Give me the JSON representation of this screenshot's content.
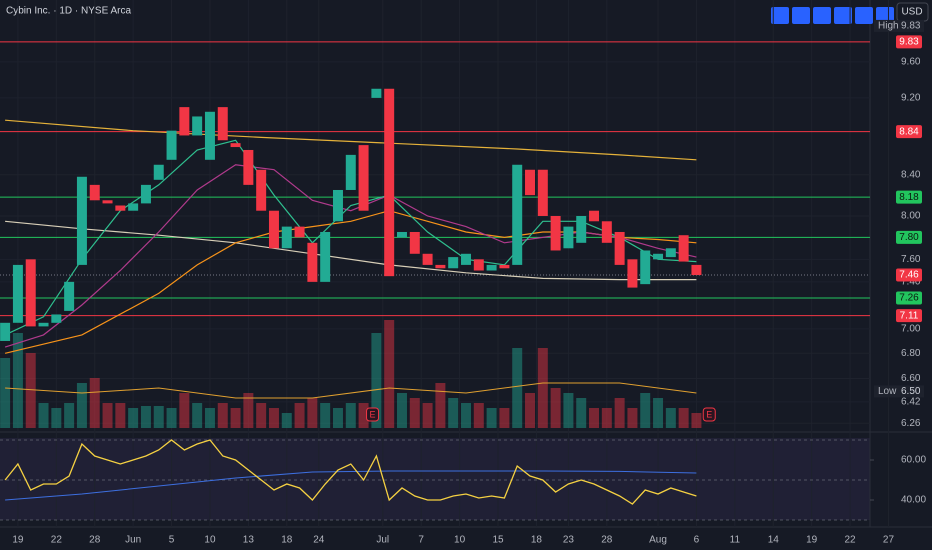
{
  "chart_data": {
    "type": "candlestick",
    "title": "Cybin Inc. · 1D · NYSE Arca",
    "currency": "USD",
    "log": true,
    "grid": true,
    "up_color": "#22ab94",
    "down_color": "#f23645",
    "x": [
      0,
      1,
      2,
      3,
      4,
      5,
      6,
      7,
      8,
      9,
      10,
      11,
      12,
      13,
      14,
      15,
      16,
      17,
      18,
      19,
      20,
      21,
      22,
      23,
      24,
      25,
      26,
      27,
      28,
      29,
      30,
      31,
      32,
      33,
      34,
      35,
      36,
      37,
      38,
      39,
      40,
      41,
      42,
      43,
      44,
      45,
      46,
      47,
      48,
      49,
      50,
      51,
      52,
      53,
      54
    ],
    "open": [
      6.9,
      7.05,
      7.6,
      7.02,
      7.05,
      7.15,
      7.55,
      8.3,
      8.15,
      8.1,
      8.05,
      8.12,
      8.35,
      8.55,
      9.1,
      8.8,
      8.55,
      9.1,
      8.72,
      8.65,
      8.45,
      8.05,
      7.7,
      7.9,
      7.75,
      7.4,
      7.95,
      8.25,
      8.7,
      9.2,
      9.3,
      7.8,
      7.85,
      7.65,
      7.55,
      7.52,
      7.55,
      7.6,
      7.5,
      7.55,
      7.55,
      8.45,
      8.45,
      8.0,
      7.7,
      7.75,
      8.05,
      7.95,
      7.85,
      7.6,
      7.38,
      7.6,
      7.62,
      7.82,
      7.55
    ],
    "high": {
      "name": "High",
      "value": 9.83,
      "label": "9.83"
    },
    "low": {
      "name": "Low",
      "value": 6.5,
      "label": "6.50"
    },
    "close": [
      7.05,
      7.55,
      7.02,
      7.05,
      7.12,
      7.4,
      8.38,
      8.15,
      8.12,
      8.05,
      8.12,
      8.3,
      8.5,
      8.85,
      8.8,
      9.0,
      9.05,
      8.75,
      8.68,
      8.3,
      8.05,
      7.7,
      7.9,
      7.8,
      7.4,
      7.85,
      8.25,
      8.6,
      8.05,
      9.3,
      7.45,
      7.85,
      7.65,
      7.55,
      7.52,
      7.62,
      7.65,
      7.5,
      7.55,
      7.52,
      8.5,
      8.2,
      8.0,
      7.68,
      7.9,
      8.0,
      7.95,
      7.75,
      7.55,
      7.35,
      7.68,
      7.65,
      7.7,
      7.58,
      7.46
    ],
    "volume": [
      70,
      95,
      75,
      25,
      20,
      25,
      45,
      50,
      25,
      25,
      20,
      22,
      22,
      20,
      35,
      25,
      20,
      25,
      20,
      35,
      25,
      20,
      15,
      25,
      30,
      25,
      20,
      25,
      25,
      95,
      108,
      35,
      30,
      25,
      45,
      30,
      25,
      25,
      20,
      20,
      80,
      35,
      80,
      40,
      35,
      30,
      20,
      20,
      30,
      20,
      35,
      30,
      20,
      20,
      15
    ],
    "volume_lim": [
      0,
      330
    ],
    "volume_ma": {
      "color": "#e0a030",
      "x": [
        0,
        6,
        12,
        18,
        24,
        30,
        36,
        42,
        48,
        54
      ],
      "values": [
        40,
        35,
        40,
        30,
        30,
        40,
        35,
        45,
        45,
        35
      ]
    },
    "xlim": [
      -0.4,
      72.4
    ],
    "ylim": [
      6.21,
      10.33
    ],
    "yticks": [
      {
        "value": 9.6,
        "label": "9.60"
      },
      {
        "value": 9.2,
        "label": "9.20"
      },
      {
        "value": 8.4,
        "label": "8.40"
      },
      {
        "value": 8.0,
        "label": "8.00"
      },
      {
        "value": 7.6,
        "label": "7.60"
      },
      {
        "value": 7.4,
        "label": "7.40"
      },
      {
        "value": 7.0,
        "label": "7.00"
      },
      {
        "value": 6.8,
        "label": "6.80"
      },
      {
        "value": 6.6,
        "label": "6.60"
      },
      6.42,
      6.26
    ],
    "xticks": [
      {
        "value": 1,
        "label": "19"
      },
      {
        "value": 4,
        "label": "22"
      },
      {
        "value": 7,
        "label": "28"
      },
      {
        "value": 10,
        "label": "Jun"
      },
      {
        "value": 13,
        "label": "5"
      },
      {
        "value": 16,
        "label": "10"
      },
      {
        "value": 19,
        "label": "13"
      },
      {
        "value": 22,
        "label": "18"
      },
      {
        "value": 24.5,
        "label": "24"
      },
      {
        "value": 29.5,
        "label": "Jul"
      },
      {
        "value": 32.5,
        "label": "7"
      },
      {
        "value": 35.5,
        "label": "10"
      },
      {
        "value": 38.5,
        "label": "15"
      },
      {
        "value": 41.5,
        "label": "18"
      },
      {
        "value": 44,
        "label": "23"
      },
      {
        "value": 47,
        "label": "28"
      },
      {
        "value": 51,
        "label": "Aug"
      },
      {
        "value": 54,
        "label": "6"
      },
      {
        "value": 57,
        "label": "11"
      },
      {
        "value": 60,
        "label": "14"
      },
      {
        "value": 63,
        "label": "19"
      },
      {
        "value": 66,
        "label": "22"
      },
      {
        "value": 69,
        "label": "27"
      }
    ],
    "levels": [
      {
        "value": 9.83,
        "label": "9.83",
        "color": "#f23645"
      },
      {
        "value": 8.84,
        "label": "8.84",
        "color": "#f23645"
      },
      {
        "value": 8.18,
        "label": "8.18",
        "color": "#22c55e"
      },
      {
        "value": 7.8,
        "label": "7.80",
        "color": "#22c55e"
      },
      {
        "value": 7.26,
        "label": "7.26",
        "color": "#22c55e"
      },
      {
        "value": 7.11,
        "label": "7.11",
        "color": "#f23645"
      }
    ],
    "last_price": {
      "value": 7.46,
      "label": "7.46",
      "color": "#f23645"
    },
    "indicators": [
      {
        "color": "#e5b23a",
        "x": [
          0,
          10,
          20,
          30,
          40,
          48,
          54
        ],
        "values": [
          8.96,
          8.85,
          8.78,
          8.72,
          8.66,
          8.6,
          8.55
        ]
      },
      {
        "color": "#d8cfb8",
        "x": [
          0,
          6,
          12,
          18,
          24,
          30,
          36,
          42,
          48,
          54
        ],
        "values": [
          7.95,
          7.88,
          7.82,
          7.75,
          7.65,
          7.55,
          7.48,
          7.43,
          7.42,
          7.42
        ]
      },
      {
        "color": "#f7931a",
        "x": [
          0,
          6,
          12,
          15,
          18,
          21,
          24,
          27,
          30,
          33,
          36,
          39,
          42,
          45,
          48,
          51,
          54
        ],
        "values": [
          6.8,
          6.95,
          7.3,
          7.55,
          7.75,
          7.85,
          7.9,
          7.95,
          8.05,
          7.95,
          7.85,
          7.8,
          7.85,
          7.85,
          7.8,
          7.78,
          7.75
        ]
      },
      {
        "color": "#b03a8c",
        "x": [
          0,
          3,
          6,
          9,
          12,
          15,
          18,
          21,
          24,
          27,
          30,
          33,
          36,
          39,
          42,
          45,
          48,
          51,
          54
        ],
        "values": [
          6.85,
          6.95,
          7.2,
          7.5,
          7.85,
          8.25,
          8.5,
          8.45,
          8.15,
          8.05,
          8.2,
          8.0,
          7.9,
          7.75,
          7.8,
          7.85,
          7.8,
          7.7,
          7.62
        ]
      },
      {
        "color": "#2fbf8f",
        "x": [
          0,
          3,
          6,
          9,
          12,
          15,
          18,
          21,
          24,
          27,
          30,
          33,
          36,
          39,
          42,
          45,
          48,
          51,
          54
        ],
        "values": [
          6.95,
          7.1,
          7.6,
          8.05,
          8.3,
          8.65,
          8.75,
          8.2,
          7.75,
          8.1,
          8.2,
          7.85,
          7.6,
          7.55,
          7.95,
          7.95,
          7.8,
          7.6,
          7.58
        ]
      }
    ],
    "events": [
      {
        "x": 28.7,
        "label": "E"
      },
      {
        "x": 55.0,
        "label": "E"
      }
    ],
    "rsi": {
      "ylim": [
        30,
        71
      ],
      "yticks": [
        {
          "value": 60,
          "label": "60.00"
        },
        {
          "value": 40,
          "label": "40.00"
        }
      ],
      "levels": [
        70,
        50,
        30
      ],
      "line": {
        "color": "#f5d142",
        "x": [
          0,
          1,
          2,
          3,
          4,
          5,
          6,
          7,
          8,
          9,
          10,
          11,
          12,
          13,
          14,
          15,
          16,
          17,
          18,
          19,
          20,
          21,
          22,
          23,
          24,
          25,
          26,
          27,
          28,
          29,
          30,
          31,
          32,
          33,
          34,
          35,
          36,
          37,
          38,
          39,
          40,
          41,
          42,
          43,
          44,
          45,
          46,
          47,
          48,
          49,
          50,
          51,
          52,
          53,
          54
        ],
        "values": [
          50,
          58,
          45,
          48,
          48,
          52,
          68,
          62,
          60,
          58,
          60,
          62,
          65,
          70,
          65,
          68,
          70,
          62,
          60,
          55,
          50,
          45,
          48,
          46,
          40,
          48,
          55,
          58,
          50,
          62,
          40,
          46,
          42,
          40,
          40,
          42,
          43,
          41,
          42,
          41,
          57,
          52,
          50,
          44,
          48,
          50,
          48,
          45,
          42,
          38,
          45,
          43,
          46,
          44,
          42
        ]
      },
      "ma": {
        "color": "#3d6fe0",
        "x": [
          0,
          6,
          12,
          18,
          24,
          30,
          36,
          42,
          48,
          54
        ],
        "values": [
          40,
          43,
          47,
          51,
          54,
          54.5,
          54.5,
          54.5,
          54.3,
          53.5
        ]
      }
    }
  }
}
